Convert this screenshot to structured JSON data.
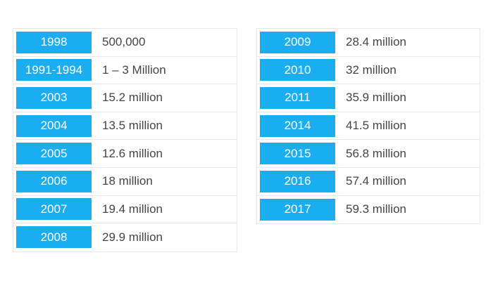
{
  "colors": {
    "year_cell_bg": "#1aaef0",
    "year_text": "#ffffff",
    "value_text": "#444444",
    "border": "#e6e6e6"
  },
  "left_table": [
    {
      "year": "1998",
      "value": "500,000"
    },
    {
      "year": "1991-1994",
      "value": "1 – 3 Million"
    },
    {
      "year": "2003",
      "value": "15.2 million"
    },
    {
      "year": "2004",
      "value": "13.5 million"
    },
    {
      "year": "2005",
      "value": "12.6 million"
    },
    {
      "year": "2006",
      "value": "18 million"
    },
    {
      "year": "2007",
      "value": "19.4 million"
    },
    {
      "year": "2008",
      "value": "29.9 million"
    }
  ],
  "right_table": [
    {
      "year": "2009",
      "value": "28.4 million"
    },
    {
      "year": "2010",
      "value": "32 million"
    },
    {
      "year": "2011",
      "value": "35.9 million"
    },
    {
      "year": "2014",
      "value": "41.5 million"
    },
    {
      "year": "2015",
      "value": "56.8 million"
    },
    {
      "year": "2016",
      "value": "57.4 million"
    },
    {
      "year": "2017",
      "value": "59.3 million"
    }
  ]
}
